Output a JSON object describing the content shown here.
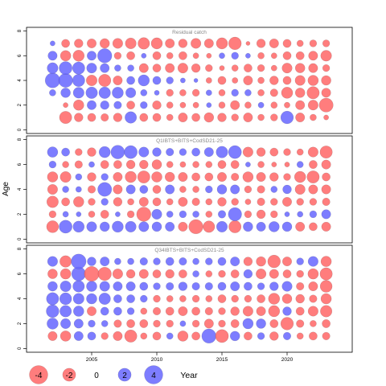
{
  "chart_data": {
    "type": "scatter",
    "subtype": "bubble-residuals",
    "ylabel": "Age",
    "x_ticks": [
      2005,
      2010,
      2015,
      2020
    ],
    "y_ticks": [
      0,
      2,
      4,
      6,
      8
    ],
    "xlim": [
      2000,
      2025
    ],
    "ylim": [
      -0.3,
      8.3
    ],
    "years": [
      2002,
      2003,
      2004,
      2005,
      2006,
      2007,
      2008,
      2009,
      2010,
      2011,
      2012,
      2013,
      2014,
      2015,
      2016,
      2017,
      2018,
      2019,
      2020,
      2021,
      2022,
      2023
    ],
    "ages": [
      1,
      2,
      3,
      4,
      5,
      6,
      7
    ],
    "colors": {
      "positive": "#6666ff",
      "negative": "#ff6666",
      "border": "#444444"
    },
    "panels": [
      {
        "title": "Residual catch",
        "residuals": {
          "7": [
            0.3,
            -0.8,
            -0.9,
            -1.0,
            -1.1,
            -1.2,
            -1.4,
            -1.6,
            -1.5,
            -1.0,
            -0.9,
            -1.2,
            -1.0,
            -1.5,
            -1.9,
            -0.2,
            -0.9,
            -1.0,
            -0.8,
            -0.5,
            -0.6,
            -0.6
          ],
          "6": [
            1.0,
            -1.3,
            -1.5,
            1.0,
            2.4,
            -0.6,
            -0.8,
            0.3,
            -0.8,
            -0.5,
            -0.8,
            -0.4,
            -0.3,
            0.4,
            0.6,
            0.3,
            -0.5,
            -0.4,
            -0.8,
            -0.8,
            -1.0,
            -1.4
          ],
          "5": [
            1.4,
            2.0,
            1.8,
            1.2,
            1.0,
            0.5,
            0.5,
            -1.0,
            -0.8,
            -1.0,
            -1.2,
            -0.9,
            -0.6,
            -0.3,
            -0.5,
            -0.8,
            -0.6,
            -0.4,
            -1.2,
            -1.1,
            -1.0,
            -0.6
          ],
          "4": [
            2.6,
            2.3,
            1.8,
            -1.4,
            -1.8,
            -1.0,
            0.8,
            1.5,
            0.8,
            0.6,
            0.3,
            0.2,
            -0.4,
            -0.8,
            -0.4,
            -1.0,
            -0.5,
            -0.9,
            -0.8,
            -1.2,
            -1.3,
            -1.1
          ],
          "3": [
            0.5,
            1.1,
            1.4,
            1.6,
            1.6,
            1.5,
            1.2,
            0.5,
            0.3,
            -0.6,
            -0.5,
            -0.6,
            0.4,
            -0.5,
            0.6,
            0.5,
            -0.5,
            -0.7,
            -1.5,
            -1.1,
            -1.8,
            -1.0
          ],
          "2": [
            0.0,
            -0.3,
            -1.3,
            1.0,
            0.9,
            0.7,
            -0.8,
            0.6,
            -0.9,
            -0.5,
            -0.4,
            -0.4,
            0.3,
            -0.5,
            -1.0,
            -0.5,
            0.4,
            -0.5,
            -0.4,
            -1.0,
            -1.2,
            -2.3
          ],
          "1": [
            0.0,
            -1.8,
            -0.9,
            -0.8,
            -0.7,
            -0.9,
            1.6,
            -0.8,
            -0.8,
            -0.5,
            -1.0,
            -0.8,
            -1.1,
            -0.9,
            -0.6,
            -1.0,
            -0.5,
            -0.6,
            1.9,
            -1.0,
            -0.5,
            -0.3
          ]
        }
      },
      {
        "title": "Q1IBTS+BITS+CodSD21-25",
        "residuals": {
          "7": [
            1.3,
            0.8,
            -0.6,
            -0.9,
            1.5,
            2.2,
            2.0,
            1.2,
            0.9,
            0.7,
            0.6,
            0.8,
            1.0,
            1.6,
            2.0,
            -1.2,
            -0.9,
            -0.8,
            -0.6,
            -0.5,
            -1.2,
            -1.8
          ],
          "6": [
            0.6,
            -0.5,
            -0.7,
            0.4,
            -0.8,
            -0.8,
            -0.9,
            -0.9,
            -1.1,
            -0.5,
            -0.4,
            -0.5,
            -0.5,
            -0.8,
            -0.8,
            0.3,
            -0.5,
            -0.3,
            -0.3,
            0.5,
            -0.8,
            -1.0
          ],
          "5": [
            -1.3,
            -1.4,
            0.5,
            -0.9,
            0.6,
            -1.0,
            -1.5,
            -1.8,
            -1.3,
            -1.1,
            -1.0,
            -0.8,
            -0.8,
            -1.0,
            -0.7,
            -1.3,
            -1.0,
            -0.9,
            -0.6,
            -1.5,
            -1.8,
            -0.8
          ],
          "4": [
            -1.2,
            0.5,
            0.4,
            -0.7,
            2.3,
            -1.0,
            1.0,
            0.8,
            -0.8,
            1.0,
            -0.5,
            -0.5,
            0.6,
            1.1,
            1.0,
            -0.6,
            -0.7,
            0.5,
            0.9,
            -1.2,
            -1.0,
            -1.0
          ],
          "3": [
            -1.6,
            -0.8,
            -1.3,
            -0.6,
            0.6,
            -0.9,
            -0.5,
            -1.0,
            -0.8,
            -0.5,
            -1.0,
            -0.7,
            -0.5,
            -0.9,
            -0.6,
            -0.4,
            -0.7,
            -0.6,
            -1.0,
            -0.6,
            -0.6,
            -0.7
          ],
          "2": [
            -0.6,
            0.4,
            0.3,
            -0.5,
            -0.8,
            0.3,
            -0.6,
            -2.4,
            1.2,
            0.5,
            0.6,
            0.5,
            -0.5,
            0.7,
            2.1,
            -0.6,
            -0.9,
            -0.6,
            0.3,
            0.4,
            0.6,
            1.0
          ],
          "1": [
            -1.7,
            2.0,
            1.5,
            1.2,
            1.1,
            1.5,
            1.4,
            1.2,
            1.1,
            1.0,
            -1.0,
            -2.4,
            -1.6,
            1.4,
            -1.8,
            1.1,
            1.0,
            1.3,
            1.1,
            -1.0,
            -0.8,
            -1.0
          ]
        }
      },
      {
        "title": "Q34IBTS+BITS+CodSD21-25",
        "residuals": {
          "7": [
            1.2,
            -1.6,
            2.6,
            0.9,
            1.0,
            0.5,
            0.5,
            0.7,
            0.6,
            0.8,
            0.7,
            0.5,
            0.6,
            0.8,
            1.0,
            -0.9,
            -1.1,
            -1.9,
            -1.0,
            0.6,
            1.2,
            -1.3
          ],
          "6": [
            -1.1,
            -1.3,
            2.3,
            -2.6,
            -2.1,
            -1.2,
            -0.9,
            -1.0,
            -0.8,
            -0.9,
            -0.8,
            0.5,
            -0.5,
            -0.6,
            -0.8,
            0.9,
            -1.2,
            -1.0,
            -0.8,
            -0.6,
            -1.3,
            -1.8
          ],
          "5": [
            1.1,
            1.4,
            1.6,
            1.3,
            1.2,
            1.0,
            1.0,
            0.8,
            0.6,
            0.7,
            0.9,
            0.7,
            0.7,
            0.8,
            1.0,
            0.8,
            0.6,
            0.9,
            1.2,
            -0.7,
            -1.0,
            -1.7
          ],
          "4": [
            1.8,
            1.7,
            1.4,
            1.3,
            1.6,
            0.8,
            0.8,
            0.6,
            -0.6,
            -0.5,
            -0.5,
            -0.6,
            -0.5,
            -0.8,
            -0.6,
            -0.6,
            -0.8,
            -1.5,
            -1.1,
            -0.9,
            -0.7,
            -1.3
          ],
          "3": [
            1.9,
            1.6,
            1.3,
            -1.0,
            0.8,
            0.8,
            0.6,
            -0.5,
            -0.7,
            -0.8,
            -1.0,
            -0.8,
            -0.7,
            -0.6,
            -0.9,
            -1.2,
            -1.0,
            -1.5,
            0.9,
            -0.8,
            -1.2,
            -1.6
          ],
          "2": [
            1.5,
            1.2,
            1.0,
            0.6,
            0.5,
            -0.7,
            -0.8,
            -0.8,
            -0.6,
            -0.6,
            0.4,
            -0.6,
            -1.0,
            -0.6,
            -0.8,
            1.3,
            1.1,
            -0.8,
            -1.9,
            -0.7,
            -0.5,
            -0.8
          ],
          "1": [
            -1.0,
            -1.3,
            1.0,
            0.8,
            -0.6,
            -1.0,
            -1.8,
            -0.5,
            -0.8,
            0.5,
            -1.3,
            -0.8,
            2.4,
            -2.0,
            1.1,
            -0.8,
            0.6,
            -0.9,
            0.7,
            -0.5,
            -0.8,
            -0.7
          ]
        }
      }
    ],
    "legend": {
      "placement": "bottom-left",
      "items": [
        {
          "label": "-4",
          "value": -4
        },
        {
          "label": "-2",
          "value": -2
        },
        {
          "label": "0",
          "value": 0
        },
        {
          "label": "2",
          "value": 2
        },
        {
          "label": "4",
          "value": 4
        }
      ],
      "title": "Year"
    }
  }
}
